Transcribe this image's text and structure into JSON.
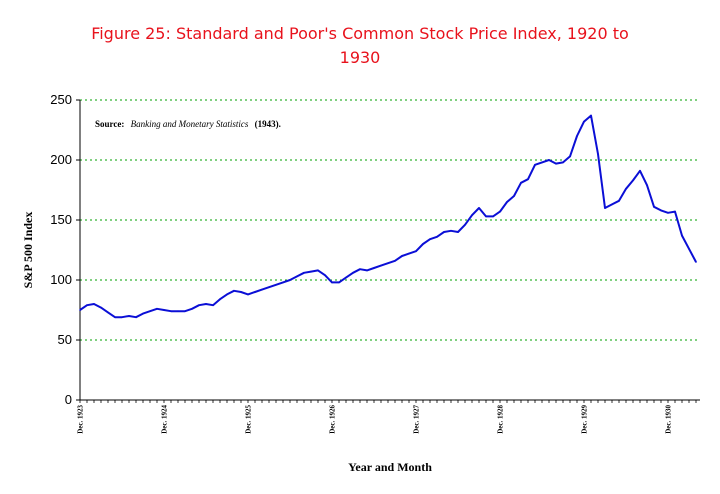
{
  "chart_data": {
    "type": "line",
    "title": "Figure 25: Standard and Poor's Common Stock Price Index, 1920 to 1930",
    "title_line1": "Figure 25: Standard and Poor's Common Stock Price Index, 1920 to",
    "title_line2": "1930",
    "source_label": "Source:",
    "source_title": "Banking and Monetary Statistics",
    "source_year": "(1943).",
    "xlabel": "Year and Month",
    "ylabel": "S&P 500 Index",
    "ylim": [
      0,
      250
    ],
    "yticks": [
      0,
      50,
      100,
      150,
      200,
      250
    ],
    "xticks": [
      {
        "label": "Dec. 1923",
        "index": 0
      },
      {
        "label": "Dec. 1924",
        "index": 12
      },
      {
        "label": "Dec. 1925",
        "index": 24
      },
      {
        "label": "Dec. 1926",
        "index": 36
      },
      {
        "label": "Dec. 1927",
        "index": 48
      },
      {
        "label": "Dec. 1928",
        "index": 60
      },
      {
        "label": "Dec. 1929",
        "index": 72
      },
      {
        "label": "Dec. 1930",
        "index": 84
      }
    ],
    "grid": "horizontal dotted",
    "colors": {
      "line": "#0b0fd6",
      "grid": "#00a000",
      "title": "#e8121c"
    },
    "series": [
      {
        "values": [
          75,
          79,
          80,
          77,
          73,
          69,
          69,
          70,
          69,
          72,
          74,
          76,
          75,
          74,
          74,
          74,
          76,
          79,
          80,
          79,
          84,
          88,
          91,
          90,
          88,
          90,
          92,
          94,
          96,
          98,
          100,
          103,
          106,
          107,
          108,
          104,
          98,
          98,
          102,
          106,
          109,
          108,
          110,
          112,
          114,
          116,
          120,
          122,
          124,
          130,
          134,
          136,
          140,
          141,
          140,
          146,
          154,
          160,
          153,
          153,
          157,
          165,
          170,
          181,
          184,
          196,
          198,
          200,
          197,
          198,
          203,
          220,
          232,
          237,
          205,
          160,
          163,
          166,
          176,
          183,
          191,
          179,
          161,
          158,
          156,
          157,
          137,
          126,
          115
        ]
      }
    ]
  }
}
